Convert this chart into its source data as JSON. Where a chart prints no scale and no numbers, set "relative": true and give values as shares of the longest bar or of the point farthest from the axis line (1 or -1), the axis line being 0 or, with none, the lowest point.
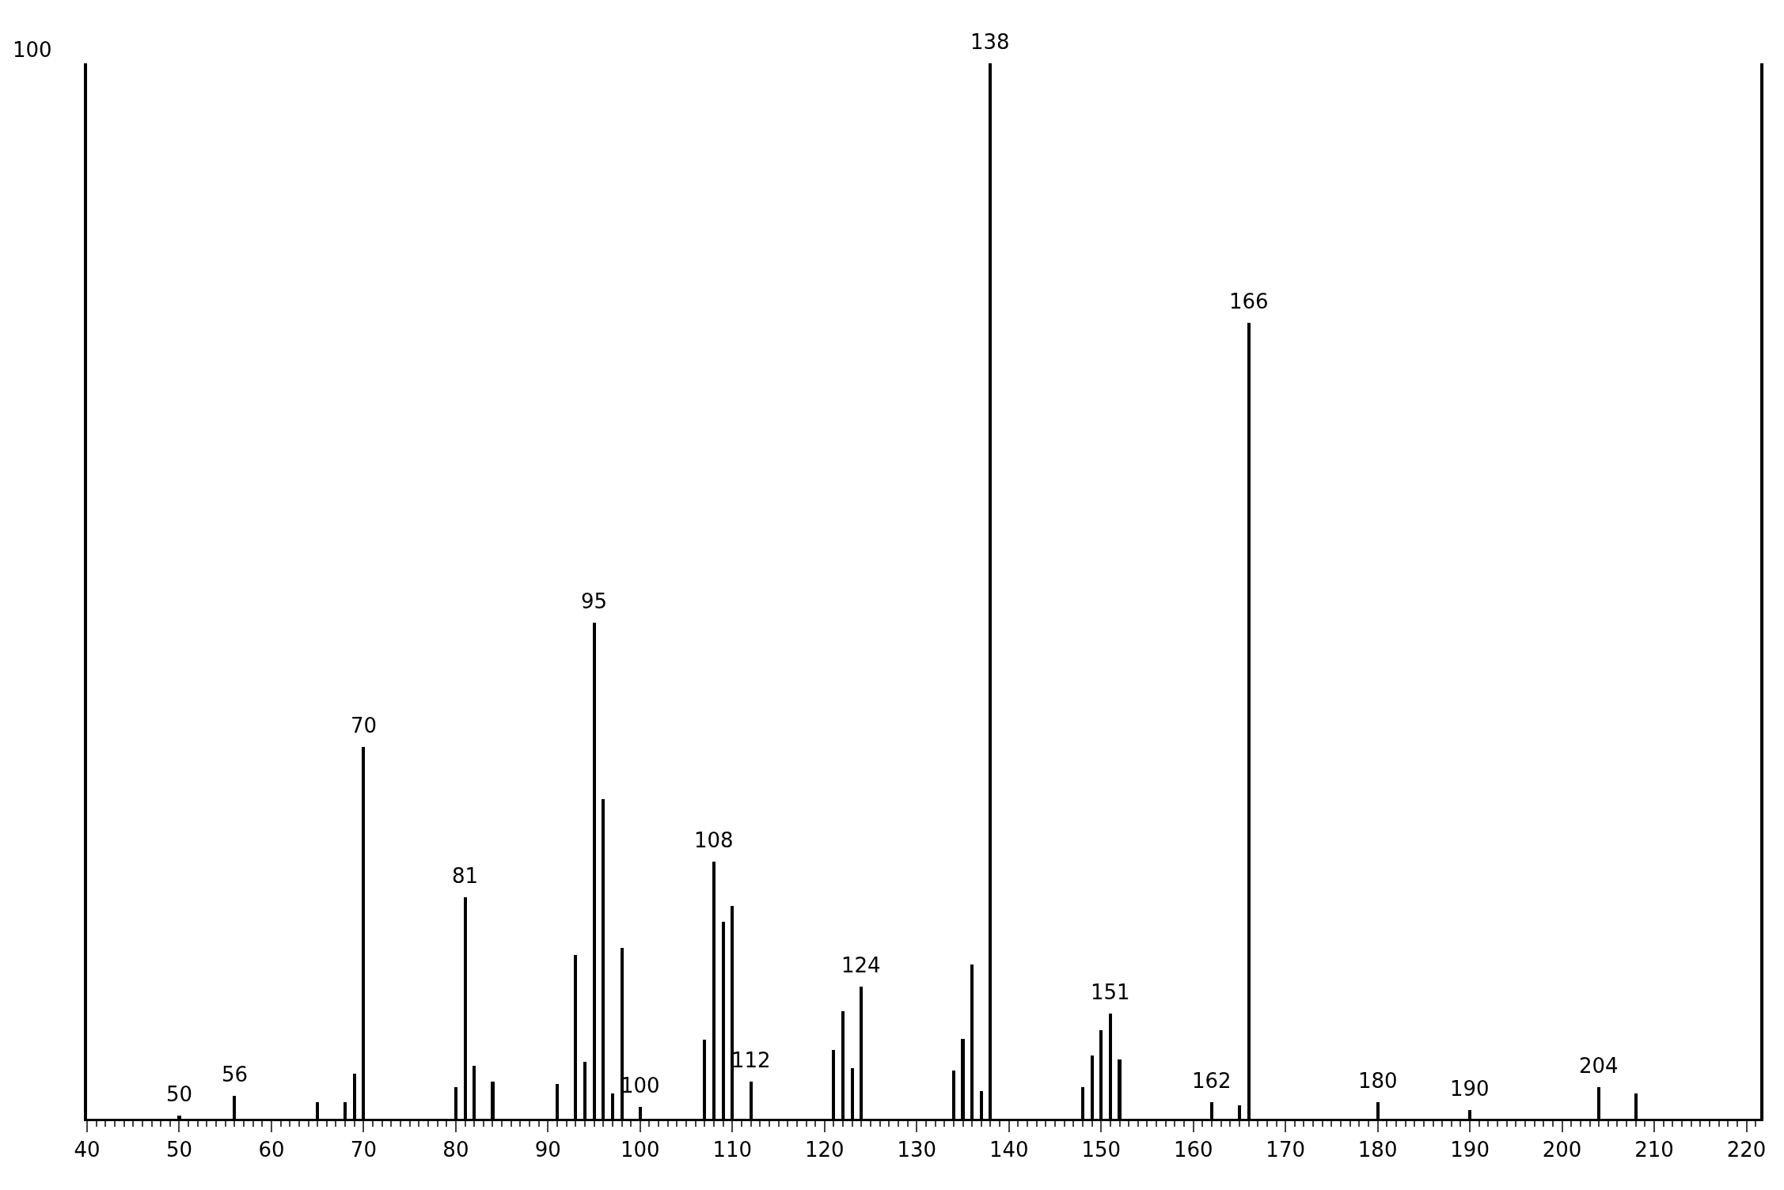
{
  "chart_data": {
    "type": "bar",
    "relative": true,
    "color": "#000000",
    "x": [
      50,
      56,
      65,
      68,
      69,
      70,
      80,
      81,
      82,
      84,
      91,
      93,
      94,
      95,
      96,
      97,
      98,
      100,
      107,
      108,
      109,
      110,
      112,
      121,
      122,
      123,
      124,
      134,
      135,
      136,
      137,
      138,
      148,
      149,
      150,
      151,
      152,
      162,
      165,
      166,
      180,
      190,
      204,
      208
    ],
    "values": [
      0.003,
      0.022,
      0.016,
      0.016,
      0.043,
      0.352,
      0.03,
      0.21,
      0.05,
      0.035,
      0.033,
      0.155,
      0.054,
      0.47,
      0.303,
      0.024,
      0.162,
      0.011,
      0.075,
      0.244,
      0.187,
      0.202,
      0.035,
      0.065,
      0.102,
      0.048,
      0.125,
      0.046,
      0.076,
      0.146,
      0.026,
      1,
      0.03,
      0.06,
      0.084,
      0.1,
      0.056,
      0.016,
      0.013,
      0.754,
      0.016,
      0.008,
      0.03,
      0.024
    ],
    "xlim": [
      40,
      221.5
    ],
    "xticks": [
      40,
      50,
      60,
      70,
      80,
      90,
      100,
      110,
      120,
      130,
      140,
      150,
      160,
      170,
      180,
      190,
      200,
      210,
      220
    ],
    "annotations": [
      "100",
      {
        "text": "50",
        "x": 50,
        "y": 0.003
      },
      {
        "text": "56",
        "x": 56,
        "y": 0.022
      },
      {
        "text": "70",
        "x": 70,
        "y": 0.352
      },
      {
        "text": "81",
        "x": 81,
        "y": 0.21
      },
      {
        "text": "95",
        "x": 95,
        "y": 0.47
      },
      {
        "text": "100",
        "x": 100,
        "y": 0.011
      },
      {
        "text": "108",
        "x": 108,
        "y": 0.244
      },
      {
        "text": "112",
        "x": 112,
        "y": 0.035
      },
      {
        "text": "124",
        "x": 124,
        "y": 0.125
      },
      {
        "text": "138",
        "x": 138,
        "y": 1
      },
      {
        "text": "151",
        "x": 151,
        "y": 0.1
      },
      {
        "text": "162",
        "x": 162,
        "y": 0.016
      },
      {
        "text": "166",
        "x": 166,
        "y": 0.754
      },
      {
        "text": "180",
        "x": 180,
        "y": 0.016
      },
      {
        "text": "190",
        "x": 190,
        "y": 0.008
      },
      {
        "text": "204",
        "x": 204,
        "y": 0.03
      }
    ]
  }
}
